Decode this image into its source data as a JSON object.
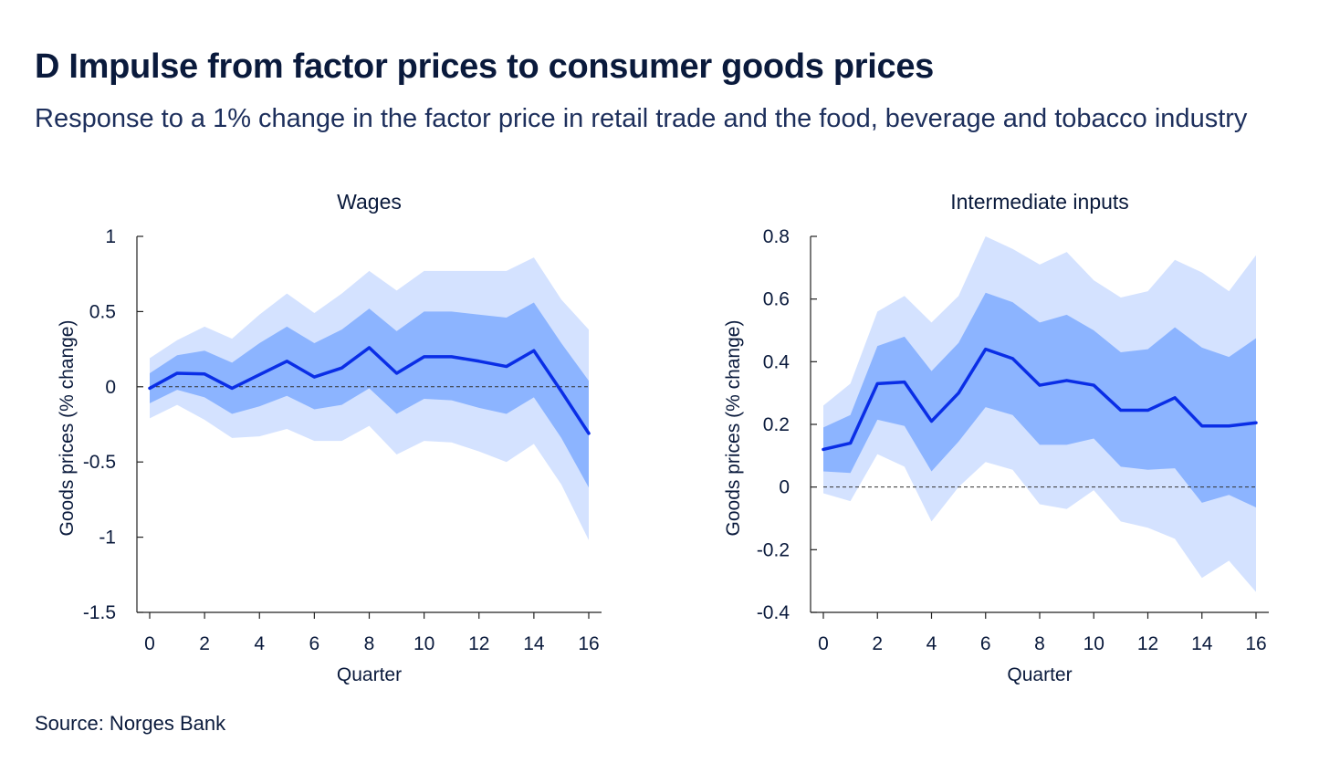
{
  "title": "D Impulse from factor prices to consumer goods prices",
  "subtitle": "Response to a 1% change in the factor price in retail trade and the food, beverage and tobacco industry",
  "source": "Source: Norges Bank",
  "colors": {
    "outer_band": "#d4e2ff",
    "inner_band": "#8cb4ff",
    "line": "#0a2ee6",
    "zero_line": "#333333",
    "axis": "#222222",
    "text": "#0a1a3c"
  },
  "chart_data": [
    {
      "type": "area",
      "title": "Wages",
      "xlabel": "Quarter",
      "ylabel": "Goods prices (% change)",
      "xlim": [
        0,
        16
      ],
      "ylim": [
        -1.5,
        1
      ],
      "xticks": [
        0,
        2,
        4,
        6,
        8,
        10,
        12,
        14,
        16
      ],
      "yticks": [
        -1.5,
        -1,
        -0.5,
        0,
        0.5,
        1
      ],
      "ytick_labels": [
        "-1.5",
        "-1",
        "-0.5",
        "0",
        "0.5",
        "1"
      ],
      "x": [
        0,
        1,
        2,
        3,
        4,
        5,
        6,
        7,
        8,
        9,
        10,
        11,
        12,
        13,
        14,
        15,
        16
      ],
      "series": [
        {
          "name": "median",
          "values": [
            -0.01,
            0.09,
            0.085,
            -0.01,
            0.08,
            0.17,
            0.065,
            0.125,
            0.26,
            0.09,
            0.2,
            0.2,
            0.17,
            0.135,
            0.24,
            -0.03,
            -0.31
          ]
        },
        {
          "name": "inner_upper",
          "values": [
            0.09,
            0.21,
            0.24,
            0.16,
            0.29,
            0.4,
            0.29,
            0.38,
            0.52,
            0.37,
            0.5,
            0.5,
            0.48,
            0.46,
            0.56,
            0.29,
            0.04
          ]
        },
        {
          "name": "inner_lower",
          "values": [
            -0.11,
            -0.02,
            -0.07,
            -0.18,
            -0.13,
            -0.06,
            -0.15,
            -0.12,
            -0.01,
            -0.18,
            -0.08,
            -0.09,
            -0.14,
            -0.18,
            -0.07,
            -0.34,
            -0.67
          ]
        },
        {
          "name": "outer_upper",
          "values": [
            0.19,
            0.31,
            0.4,
            0.32,
            0.48,
            0.62,
            0.49,
            0.62,
            0.77,
            0.64,
            0.77,
            0.77,
            0.77,
            0.77,
            0.86,
            0.58,
            0.38
          ]
        },
        {
          "name": "outer_lower",
          "values": [
            -0.21,
            -0.12,
            -0.22,
            -0.34,
            -0.33,
            -0.28,
            -0.36,
            -0.36,
            -0.26,
            -0.45,
            -0.36,
            -0.37,
            -0.43,
            -0.5,
            -0.38,
            -0.65,
            -1.02
          ]
        }
      ],
      "reference_line": 0
    },
    {
      "type": "area",
      "title": "Intermediate inputs",
      "xlabel": "Quarter",
      "ylabel": "Goods prices (% change)",
      "xlim": [
        0,
        16
      ],
      "ylim": [
        -0.4,
        0.8
      ],
      "xticks": [
        0,
        2,
        4,
        6,
        8,
        10,
        12,
        14,
        16
      ],
      "yticks": [
        -0.4,
        -0.2,
        0,
        0.2,
        0.4,
        0.6,
        0.8
      ],
      "ytick_labels": [
        "-0.4",
        "-0.2",
        "0",
        "0.2",
        "0.4",
        "0.6",
        "0.8"
      ],
      "x": [
        0,
        1,
        2,
        3,
        4,
        5,
        6,
        7,
        8,
        9,
        10,
        11,
        12,
        13,
        14,
        15,
        16
      ],
      "series": [
        {
          "name": "median",
          "values": [
            0.12,
            0.14,
            0.33,
            0.335,
            0.21,
            0.3,
            0.44,
            0.41,
            0.325,
            0.34,
            0.325,
            0.245,
            0.245,
            0.285,
            0.195,
            0.195,
            0.205
          ]
        },
        {
          "name": "inner_upper",
          "values": [
            0.19,
            0.23,
            0.45,
            0.48,
            0.37,
            0.46,
            0.62,
            0.59,
            0.525,
            0.55,
            0.5,
            0.43,
            0.44,
            0.51,
            0.445,
            0.415,
            0.475
          ]
        },
        {
          "name": "inner_lower",
          "values": [
            0.05,
            0.045,
            0.215,
            0.195,
            0.05,
            0.145,
            0.255,
            0.23,
            0.135,
            0.135,
            0.155,
            0.065,
            0.055,
            0.06,
            -0.05,
            -0.025,
            -0.065
          ]
        },
        {
          "name": "outer_upper",
          "values": [
            0.26,
            0.33,
            0.56,
            0.61,
            0.525,
            0.61,
            0.8,
            0.76,
            0.71,
            0.75,
            0.66,
            0.605,
            0.625,
            0.725,
            0.685,
            0.625,
            0.74
          ]
        },
        {
          "name": "outer_lower",
          "values": [
            -0.02,
            -0.045,
            0.105,
            0.065,
            -0.11,
            0.0,
            0.08,
            0.055,
            -0.055,
            -0.07,
            -0.01,
            -0.11,
            -0.13,
            -0.165,
            -0.29,
            -0.235,
            -0.335
          ]
        }
      ],
      "reference_line": 0
    }
  ]
}
